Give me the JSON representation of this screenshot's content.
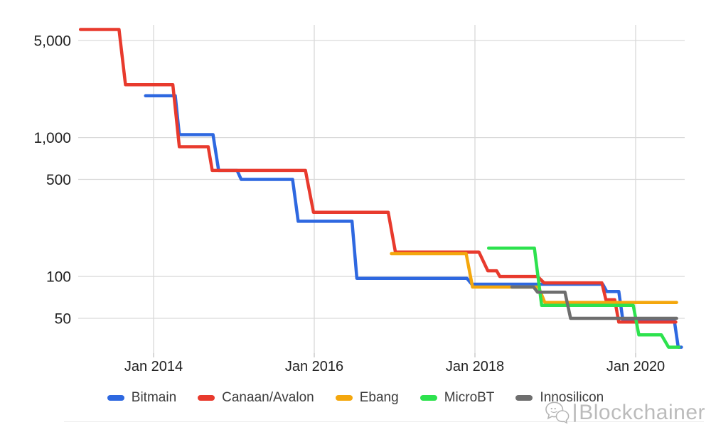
{
  "chart_data": {
    "type": "line",
    "title": "",
    "xlabel": "",
    "ylabel": "",
    "x_axis": {
      "tick_years": [
        2014,
        2016,
        2018,
        2020
      ],
      "tick_labels": [
        "Jan 2014",
        "Jan 2016",
        "Jan 2018",
        "Jan 2020"
      ],
      "range_years": [
        2013.05,
        2020.65
      ]
    },
    "y_axis": {
      "scale": "log",
      "ticks": [
        5000,
        1000,
        500,
        100,
        50
      ],
      "tick_labels": [
        "5,000",
        "1,000",
        "500",
        "100",
        "50"
      ],
      "range": [
        28,
        6500
      ]
    },
    "grid": true,
    "legend_position": "bottom",
    "series": [
      {
        "name": "Bitmain",
        "color": "#2e68e0",
        "points": [
          [
            2013.9,
            2000
          ],
          [
            2014.27,
            2000
          ],
          [
            2014.32,
            1050
          ],
          [
            2014.74,
            1050
          ],
          [
            2014.81,
            580
          ],
          [
            2015.04,
            580
          ],
          [
            2015.09,
            500
          ],
          [
            2015.73,
            500
          ],
          [
            2015.8,
            250
          ],
          [
            2016.47,
            250
          ],
          [
            2016.53,
            97
          ],
          [
            2017.9,
            97
          ],
          [
            2017.96,
            88
          ],
          [
            2019.59,
            88
          ],
          [
            2019.64,
            78
          ],
          [
            2019.79,
            78
          ],
          [
            2019.84,
            49
          ],
          [
            2020.48,
            49
          ],
          [
            2020.53,
            31
          ],
          [
            2020.57,
            31
          ]
        ]
      },
      {
        "name": "Canaan/Avalon",
        "color": "#e83a2d",
        "points": [
          [
            2013.09,
            6000
          ],
          [
            2013.57,
            6000
          ],
          [
            2013.65,
            2400
          ],
          [
            2014.24,
            2400
          ],
          [
            2014.32,
            860
          ],
          [
            2014.68,
            860
          ],
          [
            2014.73,
            580
          ],
          [
            2015.89,
            580
          ],
          [
            2015.99,
            290
          ],
          [
            2016.92,
            290
          ],
          [
            2017.01,
            150
          ],
          [
            2018.05,
            150
          ],
          [
            2018.16,
            110
          ],
          [
            2018.27,
            110
          ],
          [
            2018.31,
            100
          ],
          [
            2018.78,
            100
          ],
          [
            2018.86,
            90
          ],
          [
            2019.58,
            90
          ],
          [
            2019.63,
            68
          ],
          [
            2019.74,
            68
          ],
          [
            2019.79,
            47
          ],
          [
            2020.5,
            47
          ]
        ]
      },
      {
        "name": "Ebang",
        "color": "#f4a70d",
        "points": [
          [
            2016.96,
            146
          ],
          [
            2017.89,
            146
          ],
          [
            2017.97,
            84
          ],
          [
            2018.79,
            84
          ],
          [
            2018.87,
            65
          ],
          [
            2020.51,
            65
          ]
        ]
      },
      {
        "name": "MicroBT",
        "color": "#2de24e",
        "points": [
          [
            2018.17,
            160
          ],
          [
            2018.74,
            160
          ],
          [
            2018.83,
            62
          ],
          [
            2019.97,
            62
          ],
          [
            2020.04,
            38
          ],
          [
            2020.32,
            38
          ],
          [
            2020.41,
            31
          ],
          [
            2020.54,
            31
          ]
        ]
      },
      {
        "name": "Innosilicon",
        "color": "#6e6e6e",
        "points": [
          [
            2018.46,
            84
          ],
          [
            2018.73,
            84
          ],
          [
            2018.78,
            77
          ],
          [
            2019.12,
            77
          ],
          [
            2019.19,
            50
          ],
          [
            2020.51,
            50
          ]
        ]
      }
    ]
  },
  "watermark": {
    "text": "Blockchainer"
  }
}
